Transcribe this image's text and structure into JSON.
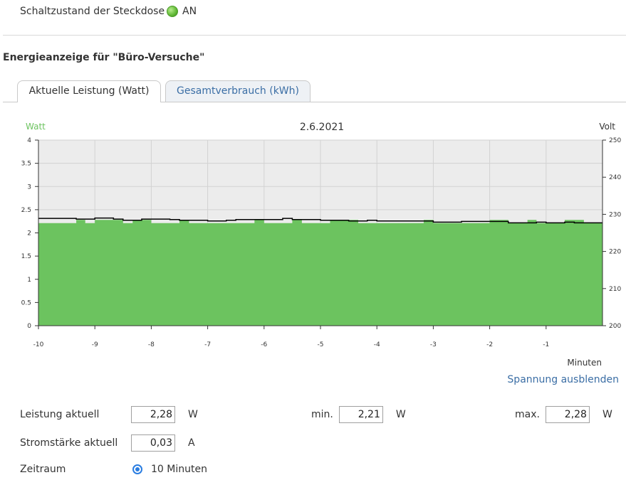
{
  "switch_state": {
    "label": "Schaltzustand der Steckdose",
    "value": "AN",
    "led_color": "#6ac259"
  },
  "section_title": "Energieanzeige für \"Büro-Versuche\"",
  "tabs": [
    {
      "label": "Aktuelle Leistung (Watt)",
      "active": true
    },
    {
      "label": "Gesamtverbrauch (kWh)",
      "active": false
    }
  ],
  "chart_data": {
    "type": "area",
    "title": "2.6.2021",
    "ylabel_left": "Watt",
    "ylabel_right": "Volt",
    "xlabel": "Minuten",
    "xlim": [
      -10,
      0
    ],
    "ylim_left": [
      0,
      4
    ],
    "ylim_right": [
      200,
      250
    ],
    "x_ticks": [
      -10,
      -9,
      -8,
      -7,
      -6,
      -5,
      -4,
      -3,
      -2,
      -1
    ],
    "y_ticks_left": [
      "0",
      "0.5",
      "1",
      "1.5",
      "2",
      "2.5",
      "3",
      "3.5",
      "4"
    ],
    "y_ticks_right": [
      "200",
      "210",
      "220",
      "230",
      "240",
      "250"
    ],
    "grid": true,
    "fill_color": "#6cc35f",
    "series": [
      {
        "name": "Watt",
        "axis": "left",
        "x": [
          -10,
          -9.67,
          -9.33,
          -9.17,
          -9,
          -8.83,
          -8.5,
          -8.33,
          -8,
          -7.83,
          -7.5,
          -7.33,
          -7,
          -6.67,
          -6.33,
          -6.17,
          -6,
          -5.67,
          -5.5,
          -5.33,
          -5,
          -4.83,
          -4.5,
          -4.33,
          -4,
          -3.67,
          -3.33,
          -3.17,
          -3,
          -2.67,
          -2.33,
          -2.17,
          -2,
          -1.67,
          -1.5,
          -1.33,
          -1.17,
          -1,
          -0.67,
          -0.33,
          0
        ],
        "values": [
          2.21,
          2.21,
          2.28,
          2.21,
          2.28,
          2.28,
          2.21,
          2.28,
          2.21,
          2.21,
          2.28,
          2.21,
          2.21,
          2.21,
          2.21,
          2.28,
          2.21,
          2.21,
          2.28,
          2.21,
          2.21,
          2.28,
          2.28,
          2.21,
          2.21,
          2.21,
          2.21,
          2.28,
          2.21,
          2.21,
          2.21,
          2.21,
          2.28,
          2.21,
          2.21,
          2.28,
          2.21,
          2.21,
          2.28,
          2.21,
          2.21
        ]
      },
      {
        "name": "Volt",
        "axis": "right",
        "x": [
          -10,
          -9.5,
          -9.33,
          -9,
          -8.67,
          -8.5,
          -8.17,
          -8,
          -7.67,
          -7.5,
          -7.17,
          -7,
          -6.67,
          -6.5,
          -6.17,
          -6,
          -5.67,
          -5.5,
          -5.17,
          -5,
          -4.67,
          -4.5,
          -4.17,
          -4,
          -3.67,
          -3.5,
          -3.17,
          -3,
          -2.67,
          -2.5,
          -2.17,
          -2,
          -1.67,
          -1.5,
          -1.17,
          -1,
          -0.67,
          -0.5,
          -0.17,
          0
        ],
        "values": [
          228.9,
          228.9,
          228.7,
          229.0,
          228.7,
          228.4,
          228.7,
          228.7,
          228.6,
          228.4,
          228.4,
          228.2,
          228.4,
          228.6,
          228.6,
          228.6,
          228.9,
          228.6,
          228.6,
          228.4,
          228.4,
          228.2,
          228.4,
          228.2,
          228.2,
          228.2,
          228.2,
          227.9,
          227.9,
          228.1,
          228.1,
          228.1,
          227.7,
          227.7,
          227.9,
          227.7,
          227.9,
          227.7,
          227.7,
          227.7
        ]
      }
    ]
  },
  "toggle_voltage_link": "Spannung ausblenden",
  "measurements": {
    "leistung": {
      "label": "Leistung aktuell",
      "value": "2,28",
      "unit": "W"
    },
    "min": {
      "label": "min.",
      "value": "2,21",
      "unit": "W"
    },
    "max": {
      "label": "max.",
      "value": "2,28",
      "unit": "W"
    },
    "strom": {
      "label": "Stromstärke aktuell",
      "value": "0,03",
      "unit": "A"
    }
  },
  "zeitraum": {
    "label": "Zeitraum",
    "option": "10 Minuten",
    "selected": true
  }
}
